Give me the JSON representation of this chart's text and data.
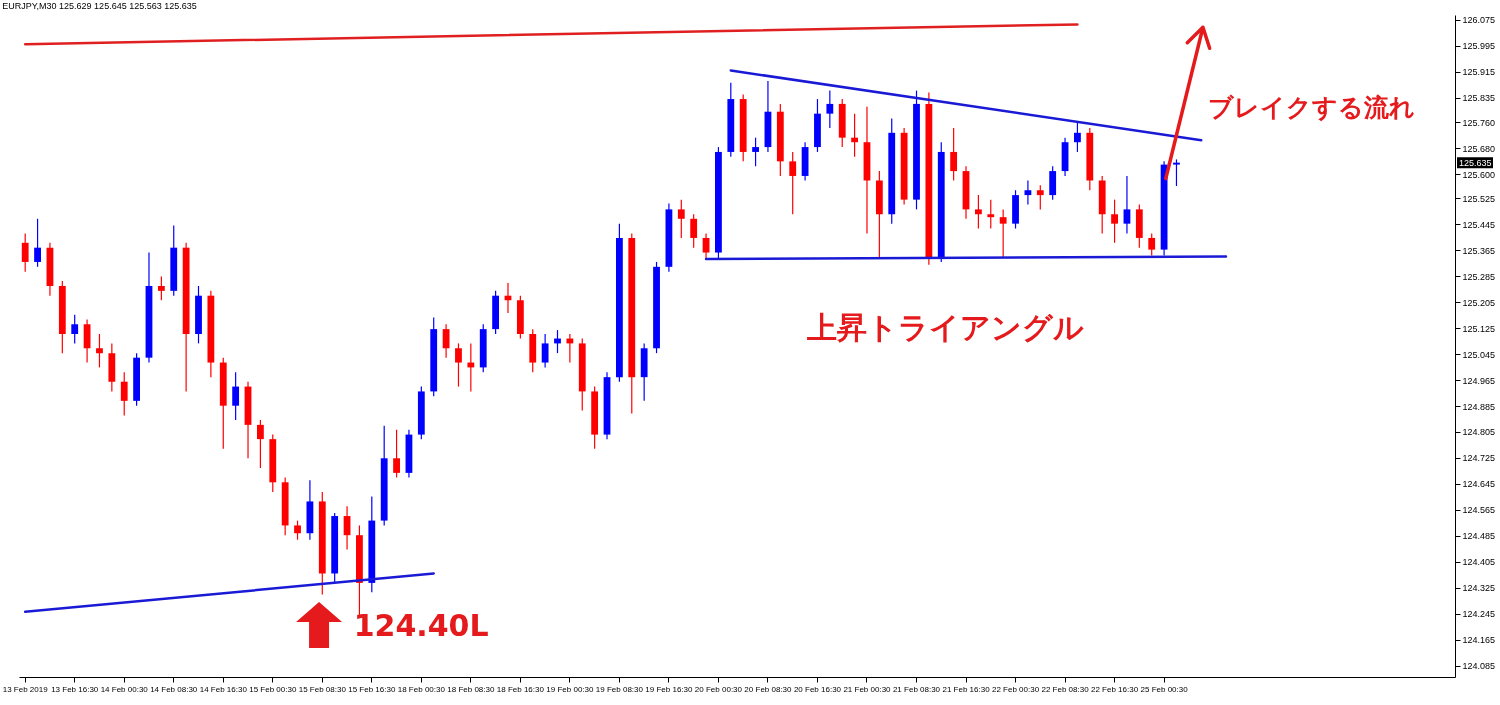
{
  "chart_data": {
    "type": "candlestick",
    "title": "EURJPY,M30  125.629 125.645 125.563 125.635",
    "categories": [
      "13 Feb 2019",
      null,
      null,
      null,
      "13 Feb 16:30",
      null,
      null,
      null,
      "14 Feb 00:30",
      null,
      null,
      null,
      "14 Feb 08:30",
      null,
      null,
      null,
      "14 Feb 16:30",
      null,
      null,
      null,
      "15 Feb 00:30",
      null,
      null,
      null,
      "15 Feb 08:30",
      null,
      null,
      null,
      "15 Feb 16:30",
      null,
      null,
      null,
      "18 Feb 00:30",
      null,
      null,
      null,
      "18 Feb 08:30",
      null,
      null,
      null,
      "18 Feb 16:30",
      null,
      null,
      null,
      "19 Feb 00:30",
      null,
      null,
      null,
      "19 Feb 08:30",
      null,
      null,
      null,
      "19 Feb 16:30",
      null,
      null,
      null,
      "20 Feb 00:30",
      null,
      null,
      null,
      "20 Feb 08:30",
      null,
      null,
      null,
      "20 Feb 16:30",
      null,
      null,
      null,
      "21 Feb 00:30",
      null,
      null,
      null,
      "21 Feb 08:30",
      null,
      null,
      null,
      "21 Feb 16:30",
      null,
      null,
      null,
      "22 Feb 00:30",
      null,
      null,
      null,
      "22 Feb 08:30",
      null,
      null,
      null,
      "22 Feb 16:30",
      null,
      null,
      null,
      "25 Feb 00:30",
      null,
      null,
      null,
      null,
      null,
      null,
      null,
      null,
      null,
      null,
      null,
      null,
      null,
      null,
      null,
      null,
      null,
      null,
      null,
      null,
      null,
      null,
      null
    ],
    "ohlc": [
      [
        125.388,
        125.417,
        125.299,
        125.329
      ],
      [
        125.329,
        125.462,
        125.314,
        125.373
      ],
      [
        125.373,
        125.388,
        125.225,
        125.255
      ],
      [
        125.255,
        125.27,
        125.048,
        125.107
      ],
      [
        125.107,
        125.166,
        125.078,
        125.137
      ],
      [
        125.137,
        125.152,
        125.019,
        125.063
      ],
      [
        125.063,
        125.107,
        125.004,
        125.048
      ],
      [
        125.048,
        125.078,
        124.93,
        124.96
      ],
      [
        124.96,
        124.989,
        124.856,
        124.901
      ],
      [
        124.901,
        125.048,
        124.886,
        125.034
      ],
      [
        125.034,
        125.358,
        125.019,
        125.255
      ],
      [
        125.255,
        125.284,
        125.211,
        125.24
      ],
      [
        125.24,
        125.441,
        125.225,
        125.373
      ],
      [
        125.373,
        125.388,
        124.93,
        125.107
      ],
      [
        125.107,
        125.255,
        125.078,
        125.225
      ],
      [
        125.225,
        125.24,
        124.974,
        125.019
      ],
      [
        125.019,
        125.034,
        124.753,
        124.886
      ],
      [
        124.886,
        124.989,
        124.842,
        124.945
      ],
      [
        124.945,
        124.96,
        124.724,
        124.827
      ],
      [
        124.827,
        124.842,
        124.694,
        124.783
      ],
      [
        124.783,
        124.797,
        124.62,
        124.65
      ],
      [
        124.65,
        124.665,
        124.487,
        124.517
      ],
      [
        124.517,
        124.532,
        124.473,
        124.493
      ],
      [
        124.493,
        124.656,
        124.473,
        124.591
      ],
      [
        124.591,
        124.62,
        124.304,
        124.369
      ],
      [
        124.369,
        124.555,
        124.34,
        124.546
      ],
      [
        124.546,
        124.576,
        124.443,
        124.487
      ],
      [
        124.487,
        124.517,
        124.234,
        124.34
      ],
      [
        124.34,
        124.606,
        124.311,
        124.532
      ],
      [
        124.532,
        124.824,
        124.517,
        124.724
      ],
      [
        124.724,
        124.812,
        124.665,
        124.679
      ],
      [
        124.679,
        124.812,
        124.665,
        124.797
      ],
      [
        124.797,
        124.945,
        124.783,
        124.93
      ],
      [
        124.93,
        125.158,
        124.915,
        125.122
      ],
      [
        125.122,
        125.137,
        125.034,
        125.063
      ],
      [
        125.063,
        125.078,
        124.945,
        125.019
      ],
      [
        125.019,
        125.078,
        124.93,
        125.004
      ],
      [
        125.004,
        125.137,
        124.989,
        125.122
      ],
      [
        125.122,
        125.24,
        125.107,
        125.225
      ],
      [
        125.225,
        125.264,
        125.172,
        125.211
      ],
      [
        125.211,
        125.225,
        125.093,
        125.107
      ],
      [
        125.107,
        125.122,
        124.989,
        125.019
      ],
      [
        125.019,
        125.107,
        125.004,
        125.078
      ],
      [
        125.078,
        125.119,
        125.048,
        125.093
      ],
      [
        125.093,
        125.107,
        125.019,
        125.078
      ],
      [
        125.078,
        125.093,
        124.871,
        124.93
      ],
      [
        124.93,
        124.945,
        124.753,
        124.797
      ],
      [
        124.797,
        124.989,
        124.783,
        124.974
      ],
      [
        124.974,
        125.447,
        124.96,
        125.403
      ],
      [
        125.403,
        125.417,
        124.862,
        124.974
      ],
      [
        124.974,
        125.078,
        124.901,
        125.063
      ],
      [
        125.063,
        125.329,
        125.048,
        125.314
      ],
      [
        125.314,
        125.509,
        125.299,
        125.491
      ],
      [
        125.491,
        125.521,
        125.403,
        125.462
      ],
      [
        125.462,
        125.476,
        125.373,
        125.403
      ],
      [
        125.403,
        125.417,
        125.338,
        125.358
      ],
      [
        125.358,
        125.683,
        125.338,
        125.668
      ],
      [
        125.668,
        125.881,
        125.653,
        125.831
      ],
      [
        125.831,
        125.845,
        125.639,
        125.668
      ],
      [
        125.668,
        125.712,
        125.624,
        125.683
      ],
      [
        125.683,
        125.887,
        125.668,
        125.792
      ],
      [
        125.792,
        125.816,
        125.594,
        125.639
      ],
      [
        125.639,
        125.668,
        125.476,
        125.594
      ],
      [
        125.594,
        125.698,
        125.58,
        125.683
      ],
      [
        125.683,
        125.831,
        125.668,
        125.786
      ],
      [
        125.786,
        125.857,
        125.742,
        125.816
      ],
      [
        125.816,
        125.831,
        125.683,
        125.712
      ],
      [
        125.712,
        125.786,
        125.653,
        125.698
      ],
      [
        125.698,
        125.807,
        125.417,
        125.58
      ],
      [
        125.58,
        125.609,
        125.338,
        125.476
      ],
      [
        125.476,
        125.771,
        125.447,
        125.727
      ],
      [
        125.727,
        125.742,
        125.506,
        125.521
      ],
      [
        125.521,
        125.857,
        125.491,
        125.816
      ],
      [
        125.816,
        125.851,
        125.32,
        125.343
      ],
      [
        125.343,
        125.698,
        125.329,
        125.668
      ],
      [
        125.668,
        125.742,
        125.58,
        125.609
      ],
      [
        125.609,
        125.624,
        125.462,
        125.491
      ],
      [
        125.491,
        125.535,
        125.432,
        125.476
      ],
      [
        125.476,
        125.521,
        125.432,
        125.467
      ],
      [
        125.467,
        125.491,
        125.343,
        125.447
      ],
      [
        125.447,
        125.55,
        125.432,
        125.535
      ],
      [
        125.535,
        125.58,
        125.506,
        125.55
      ],
      [
        125.55,
        125.565,
        125.491,
        125.535
      ],
      [
        125.535,
        125.624,
        125.521,
        125.609
      ],
      [
        125.609,
        125.712,
        125.594,
        125.698
      ],
      [
        125.698,
        125.763,
        125.668,
        125.727
      ],
      [
        125.727,
        125.742,
        125.55,
        125.58
      ],
      [
        125.58,
        125.594,
        125.417,
        125.476
      ],
      [
        125.476,
        125.521,
        125.388,
        125.447
      ],
      [
        125.447,
        125.594,
        125.417,
        125.491
      ],
      [
        125.491,
        125.506,
        125.373,
        125.403
      ],
      [
        125.403,
        125.417,
        125.349,
        125.367
      ],
      [
        125.367,
        125.639,
        125.349,
        125.629
      ],
      [
        125.629,
        125.645,
        125.563,
        125.635
      ],
      null,
      null,
      null,
      null,
      null,
      null,
      null,
      null,
      null,
      null,
      null,
      null,
      null,
      null,
      null,
      null,
      null,
      null,
      null,
      null,
      null,
      null
    ],
    "colors": [
      "#ff0000",
      "#0000ff",
      "#ff0000",
      "#ff0000",
      "#0000ff",
      "#ff0000",
      "#ff0000",
      "#ff0000",
      "#ff0000",
      "#0000ff",
      "#0000ff",
      "#ff0000",
      "#0000ff",
      "#ff0000",
      "#0000ff",
      "#ff0000",
      "#ff0000",
      "#0000ff",
      "#ff0000",
      "#ff0000",
      "#ff0000",
      "#ff0000",
      "#ff0000",
      "#0000ff",
      "#ff0000",
      "#0000ff",
      "#ff0000",
      "#ff0000",
      "#0000ff",
      "#0000ff",
      "#ff0000",
      "#0000ff",
      "#0000ff",
      "#0000ff",
      "#ff0000",
      "#ff0000",
      "#ff0000",
      "#0000ff",
      "#0000ff",
      "#ff0000",
      "#ff0000",
      "#ff0000",
      "#0000ff",
      "#0000ff",
      "#ff0000",
      "#ff0000",
      "#ff0000",
      "#0000ff",
      "#0000ff",
      "#ff0000",
      "#0000ff",
      "#0000ff",
      "#0000ff",
      "#ff0000",
      "#ff0000",
      "#ff0000",
      "#0000ff",
      "#0000ff",
      "#ff0000",
      "#0000ff",
      "#0000ff",
      "#ff0000",
      "#ff0000",
      "#0000ff",
      "#0000ff",
      "#0000ff",
      "#ff0000",
      "#ff0000",
      "#ff0000",
      "#ff0000",
      "#0000ff",
      "#ff0000",
      "#0000ff",
      "#ff0000",
      "#0000ff",
      "#ff0000",
      "#ff0000",
      "#ff0000",
      "#ff0000",
      "#ff0000",
      "#0000ff",
      "#0000ff",
      "#ff0000",
      "#0000ff",
      "#0000ff",
      "#0000ff",
      "#ff0000",
      "#ff0000",
      "#ff0000",
      "#0000ff",
      "#ff0000",
      "#ff0000",
      "#0000ff",
      "#0000ff",
      null,
      null,
      null,
      null,
      null,
      null,
      null,
      null,
      null,
      null,
      null,
      null,
      null,
      null,
      null,
      null,
      null,
      null,
      null,
      null,
      null,
      null
    ],
    "series": [
      {
        "type": "line",
        "color": "#1a1ad6",
        "values": [
          124.251,
          null,
          null,
          null,
          null,
          null,
          null,
          null,
          null,
          null,
          null,
          null,
          null,
          null,
          null,
          null,
          null,
          null,
          null,
          null,
          null,
          null,
          null,
          null,
          null,
          null,
          null,
          null,
          null,
          null,
          null,
          null,
          null,
          124.369,
          null,
          null,
          null,
          null,
          null,
          null,
          null,
          null,
          null,
          null,
          null,
          null,
          null,
          null,
          null,
          null,
          null,
          null,
          null,
          null,
          null,
          null,
          null,
          null,
          null,
          null,
          null,
          null,
          null,
          null,
          null,
          null,
          null,
          null,
          null,
          null,
          null,
          null,
          null,
          null,
          null,
          null,
          null,
          null,
          null,
          null,
          null,
          null,
          null,
          null,
          null,
          null,
          null,
          null,
          null,
          null,
          null,
          null,
          null,
          null,
          null,
          null,
          null,
          null,
          null,
          null,
          null,
          null,
          null,
          null,
          null,
          null,
          null,
          null,
          null,
          null,
          null,
          null,
          null,
          null,
          null,
          null
        ]
      },
      {
        "type": "line",
        "color": "#1a1ad6",
        "values": [
          null,
          null,
          null,
          null,
          null,
          null,
          null,
          null,
          null,
          null,
          null,
          null,
          null,
          null,
          null,
          null,
          null,
          null,
          null,
          null,
          null,
          null,
          null,
          null,
          null,
          null,
          null,
          null,
          null,
          null,
          null,
          null,
          null,
          null,
          null,
          null,
          null,
          null,
          null,
          null,
          null,
          null,
          null,
          null,
          null,
          null,
          null,
          null,
          null,
          null,
          null,
          null,
          null,
          null,
          null,
          null,
          null,
          125.919,
          null,
          null,
          null,
          null,
          null,
          null,
          null,
          null,
          null,
          null,
          null,
          null,
          null,
          null,
          null,
          null,
          null,
          null,
          null,
          null,
          null,
          null,
          null,
          null,
          null,
          null,
          null,
          null,
          null,
          null,
          null,
          null,
          null,
          null,
          null,
          null,
          null,
          125.704,
          null,
          null,
          null,
          null,
          null,
          null,
          null,
          null,
          null,
          null,
          null,
          null,
          null,
          null,
          null,
          null,
          null,
          null,
          null,
          null
        ]
      },
      {
        "type": "line",
        "color": "#1a1ad6",
        "values": [
          null,
          null,
          null,
          null,
          null,
          null,
          null,
          null,
          null,
          null,
          null,
          null,
          null,
          null,
          null,
          null,
          null,
          null,
          null,
          null,
          null,
          null,
          null,
          null,
          null,
          null,
          null,
          null,
          null,
          null,
          null,
          null,
          null,
          null,
          null,
          null,
          null,
          null,
          null,
          null,
          null,
          null,
          null,
          null,
          null,
          null,
          null,
          null,
          null,
          null,
          null,
          null,
          null,
          null,
          null,
          125.338,
          null,
          null,
          null,
          null,
          null,
          null,
          null,
          null,
          null,
          null,
          null,
          null,
          null,
          null,
          null,
          null,
          null,
          null,
          null,
          null,
          null,
          null,
          null,
          null,
          null,
          null,
          null,
          null,
          null,
          null,
          null,
          null,
          null,
          null,
          null,
          null,
          null,
          null,
          null,
          null,
          null,
          125.346,
          null,
          null,
          null,
          null,
          null,
          null,
          null,
          null,
          null,
          null,
          null,
          null,
          null,
          null,
          null,
          null,
          null,
          null
        ]
      },
      {
        "type": "line",
        "color": "#e02020",
        "values": [
          126.0,
          null,
          null,
          null,
          null,
          null,
          null,
          null,
          null,
          null,
          null,
          null,
          null,
          null,
          null,
          null,
          null,
          null,
          null,
          null,
          null,
          null,
          null,
          null,
          null,
          null,
          null,
          null,
          null,
          null,
          null,
          null,
          null,
          null,
          null,
          null,
          null,
          null,
          null,
          null,
          null,
          null,
          null,
          null,
          null,
          null,
          null,
          null,
          null,
          null,
          null,
          null,
          null,
          null,
          null,
          null,
          null,
          null,
          null,
          null,
          null,
          null,
          null,
          null,
          null,
          null,
          null,
          null,
          null,
          null,
          null,
          null,
          null,
          null,
          null,
          null,
          null,
          null,
          null,
          null,
          null,
          null,
          null,
          null,
          null,
          126.061,
          null,
          null,
          null,
          null,
          null,
          null,
          null,
          null,
          null,
          null,
          null,
          null,
          null,
          null,
          null,
          null,
          null,
          null,
          null,
          null,
          null,
          null,
          null,
          null,
          null,
          null,
          null,
          null,
          null,
          null
        ]
      }
    ],
    "ylim": [
      124.05,
      126.09
    ],
    "yticks": [
      {
        "value": 124.085,
        "label": "124.085"
      },
      {
        "value": 124.165,
        "label": "124.165"
      },
      {
        "value": 124.245,
        "label": "124.245"
      },
      {
        "value": 124.325,
        "label": "124.325"
      },
      {
        "value": 124.405,
        "label": "124.405"
      },
      {
        "value": 124.485,
        "label": "124.485"
      },
      {
        "value": 124.565,
        "label": "124.565"
      },
      {
        "value": 124.645,
        "label": "124.645"
      },
      {
        "value": 124.725,
        "label": "124.725"
      },
      {
        "value": 124.805,
        "label": "124.805"
      },
      {
        "value": 124.885,
        "label": "124.885"
      },
      {
        "value": 124.965,
        "label": "124.965"
      },
      {
        "value": 125.045,
        "label": "125.045"
      },
      {
        "value": 125.125,
        "label": "125.125"
      },
      {
        "value": 125.205,
        "label": "125.205"
      },
      {
        "value": 125.285,
        "label": "125.285"
      },
      {
        "value": 125.365,
        "label": "125.365"
      },
      {
        "value": 125.445,
        "label": "125.445"
      },
      {
        "value": 125.525,
        "label": "125.525"
      },
      {
        "value": 125.6,
        "label": "125.600"
      },
      {
        "value": 125.68,
        "label": "125.680"
      },
      {
        "value": 125.76,
        "label": "125.760"
      },
      {
        "value": 125.835,
        "label": "125.835"
      },
      {
        "value": 125.915,
        "label": "125.915"
      },
      {
        "value": 125.995,
        "label": "125.995"
      },
      {
        "value": 126.075,
        "label": "126.075"
      }
    ],
    "annotations": [
      "124.40L",
      "上昇トライアングル",
      "ブレイクする流れ",
      "125.635"
    ]
  }
}
